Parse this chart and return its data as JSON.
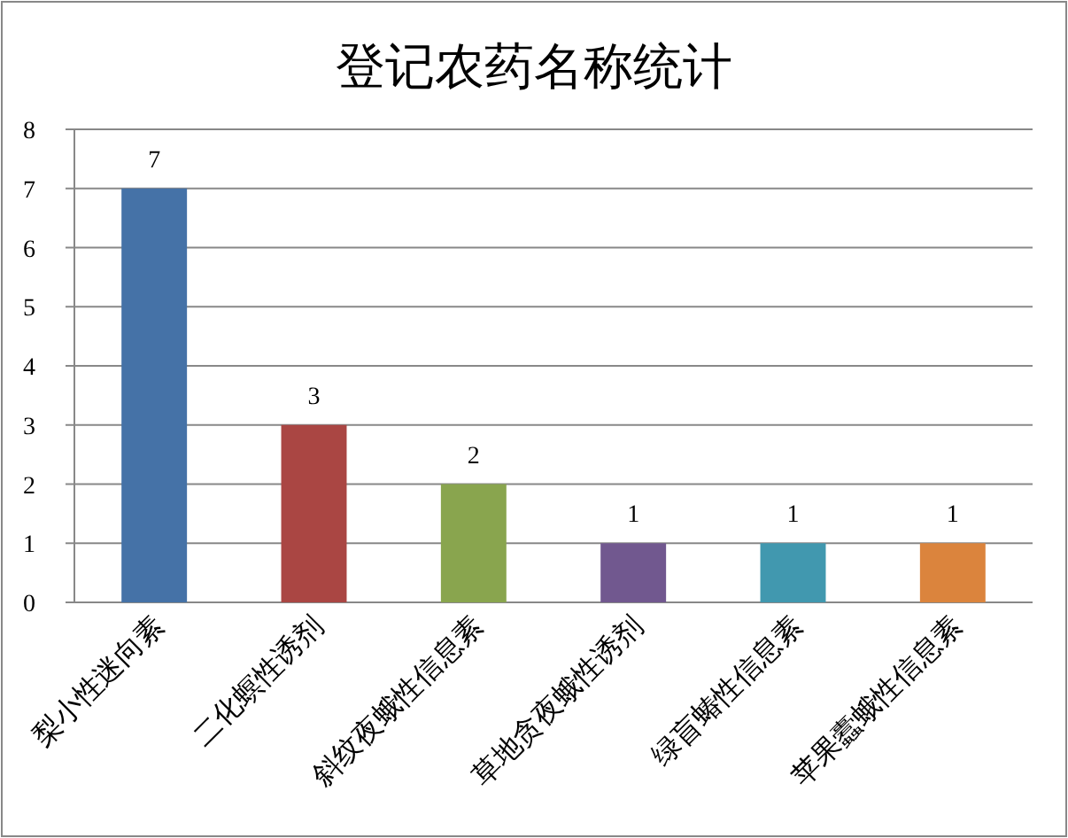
{
  "chart_data": {
    "type": "bar",
    "title": "登记农药名称统计",
    "categories": [
      "梨小性迷向素",
      "二化螟性诱剂",
      "斜纹夜蛾性信息素",
      "草地贪夜蛾性诱剂",
      "绿盲蝽性信息素",
      "苹果蠹蛾性信息素"
    ],
    "values": [
      7,
      3,
      2,
      1,
      1,
      1
    ],
    "colors": [
      "#4572a7",
      "#aa4643",
      "#89a54e",
      "#71588f",
      "#4198af",
      "#db843d"
    ],
    "ylim": [
      0,
      8
    ],
    "yticks": [
      0,
      1,
      2,
      3,
      4,
      5,
      6,
      7,
      8
    ],
    "grid": "y",
    "data_labels": true
  }
}
